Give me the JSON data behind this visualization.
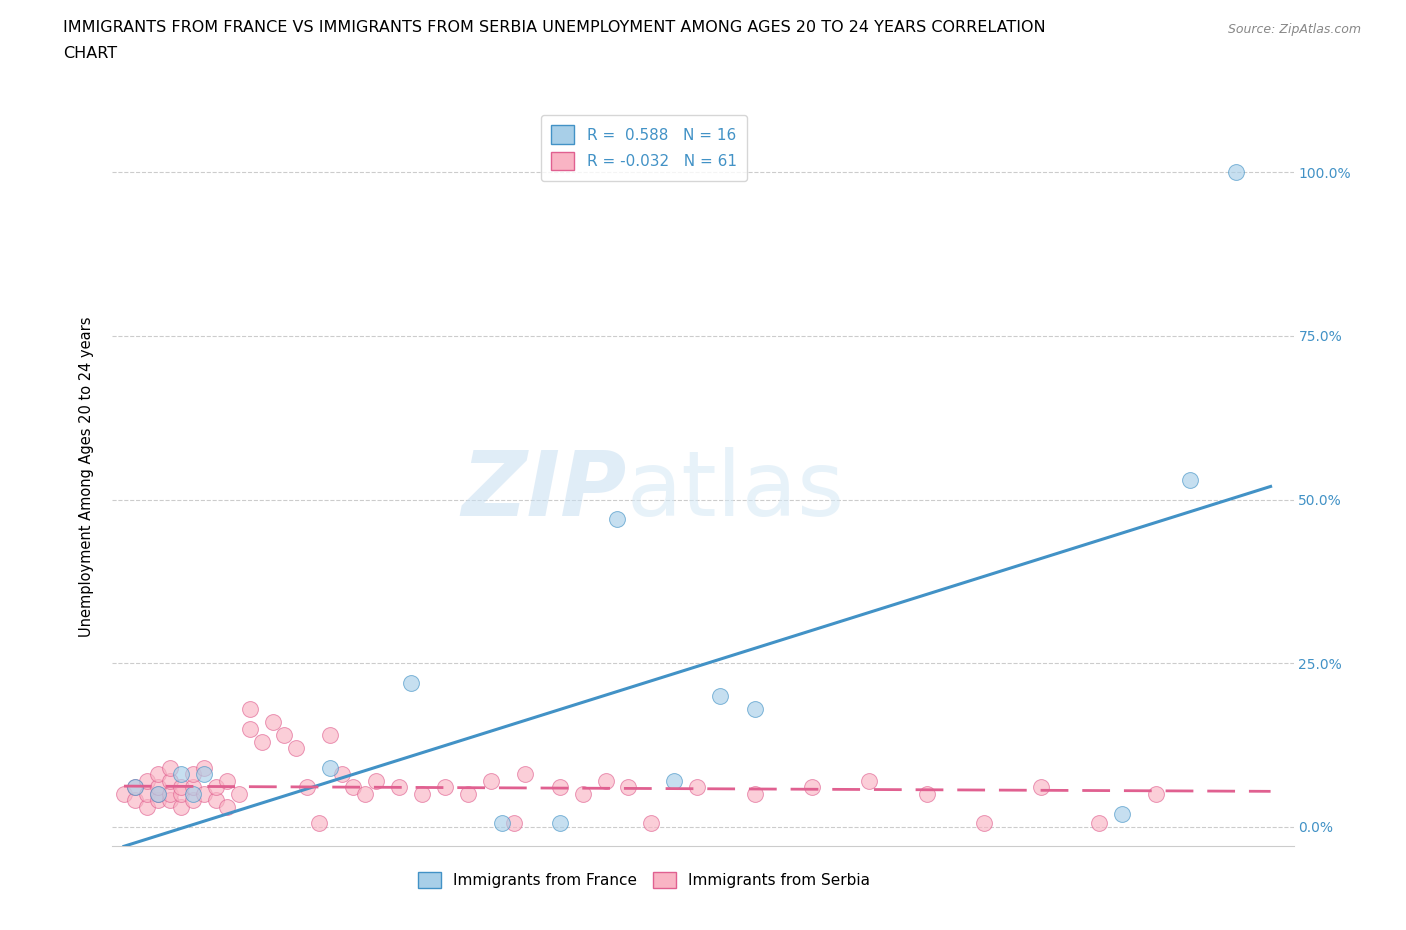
{
  "title_line1": "IMMIGRANTS FROM FRANCE VS IMMIGRANTS FROM SERBIA UNEMPLOYMENT AMONG AGES 20 TO 24 YEARS CORRELATION",
  "title_line2": "CHART",
  "source_text": "Source: ZipAtlas.com",
  "ylabel": "Unemployment Among Ages 20 to 24 years",
  "france_color": "#a8cfe8",
  "serbia_color": "#f9b4c4",
  "france_edge_color": "#4292c6",
  "serbia_edge_color": "#e06090",
  "france_line_color": "#4292c6",
  "serbia_line_color": "#e06090",
  "tick_color": "#4292c6",
  "background_color": "#ffffff",
  "legend_R_france": "0.588",
  "legend_N_france": "16",
  "legend_R_serbia": "-0.032",
  "legend_N_serbia": "61",
  "france_x": [
    0.001,
    0.003,
    0.005,
    0.006,
    0.007,
    0.018,
    0.025,
    0.033,
    0.038,
    0.043,
    0.048,
    0.052,
    0.055,
    0.087,
    0.093,
    0.097
  ],
  "france_y": [
    6.0,
    5.0,
    8.0,
    5.0,
    8.0,
    9.0,
    22.0,
    0.5,
    0.5,
    47.0,
    7.0,
    20.0,
    18.0,
    2.0,
    53.0,
    100.0
  ],
  "serbia_x": [
    0.0,
    0.001,
    0.001,
    0.002,
    0.002,
    0.002,
    0.003,
    0.003,
    0.003,
    0.003,
    0.004,
    0.004,
    0.004,
    0.004,
    0.005,
    0.005,
    0.005,
    0.006,
    0.006,
    0.006,
    0.007,
    0.007,
    0.008,
    0.008,
    0.009,
    0.009,
    0.01,
    0.011,
    0.011,
    0.012,
    0.013,
    0.014,
    0.015,
    0.016,
    0.017,
    0.018,
    0.019,
    0.02,
    0.021,
    0.022,
    0.024,
    0.026,
    0.028,
    0.03,
    0.032,
    0.034,
    0.035,
    0.038,
    0.04,
    0.042,
    0.044,
    0.046,
    0.05,
    0.055,
    0.06,
    0.065,
    0.07,
    0.075,
    0.08,
    0.085,
    0.09
  ],
  "serbia_y": [
    5.0,
    4.0,
    6.0,
    3.0,
    5.0,
    7.0,
    4.0,
    5.0,
    6.0,
    8.0,
    4.0,
    5.0,
    7.0,
    9.0,
    3.0,
    5.0,
    6.0,
    4.0,
    6.0,
    8.0,
    5.0,
    9.0,
    4.0,
    6.0,
    3.0,
    7.0,
    5.0,
    15.0,
    18.0,
    13.0,
    16.0,
    14.0,
    12.0,
    6.0,
    0.5,
    14.0,
    8.0,
    6.0,
    5.0,
    7.0,
    6.0,
    5.0,
    6.0,
    5.0,
    7.0,
    0.5,
    8.0,
    6.0,
    5.0,
    7.0,
    6.0,
    0.5,
    6.0,
    5.0,
    6.0,
    7.0,
    5.0,
    0.5,
    6.0,
    0.5,
    5.0
  ],
  "xlim": [
    -0.001,
    0.102
  ],
  "ylim": [
    -3.0,
    110.0
  ],
  "yticks": [
    0.0,
    25.0,
    50.0,
    75.0,
    100.0
  ],
  "ytick_labels": [
    "0.0%",
    "25.0%",
    "50.0%",
    "75.0%",
    "100.0%"
  ],
  "xticks": [
    0.0,
    0.025,
    0.05,
    0.075,
    0.1
  ],
  "france_slope": 550.0,
  "france_intercept": -3.0,
  "serbia_slope": -8.0,
  "serbia_intercept": 6.2,
  "grid_color": "#cccccc",
  "title_fontsize": 11.5,
  "axis_label_fontsize": 10.5,
  "tick_label_fontsize": 10,
  "legend_fontsize": 11
}
